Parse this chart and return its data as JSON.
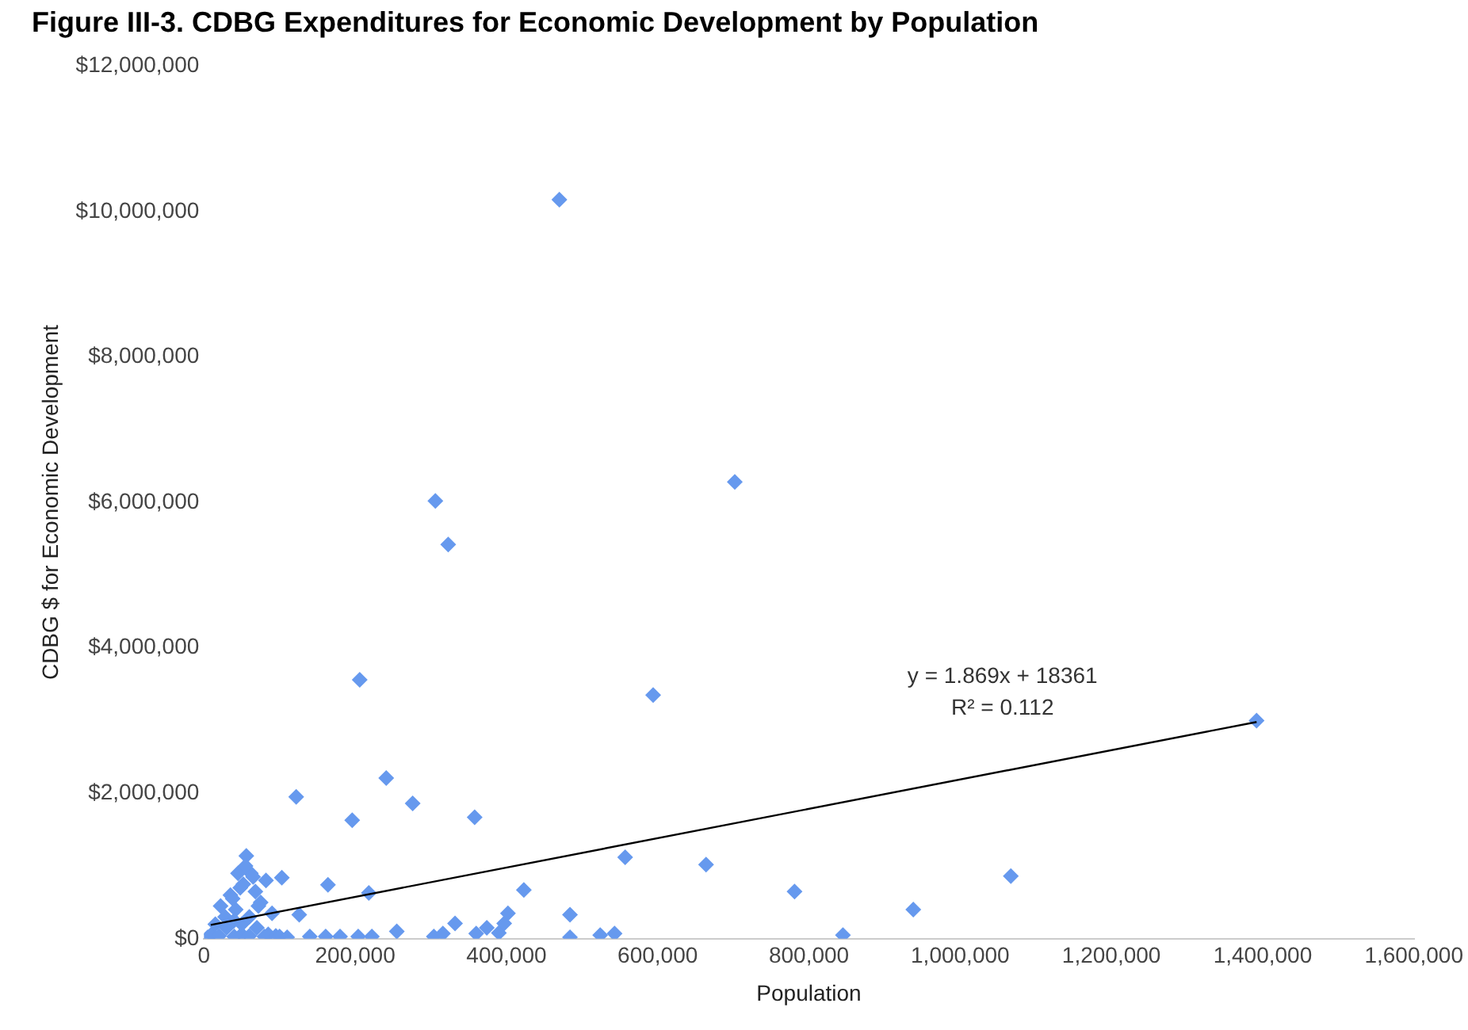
{
  "chart_data": {
    "type": "scatter",
    "title": "Figure III-3. CDBG Expenditures for Economic Development by Population",
    "xlabel": "Population",
    "ylabel": "CDBG $ for Economic Development",
    "xlim": [
      0,
      1600000
    ],
    "xticks": [
      0,
      {
        "value": 200000,
        "label": "200,000"
      },
      {
        "value": 400000,
        "label": "400,000"
      },
      {
        "value": 600000,
        "label": "600,000"
      },
      {
        "value": 800000,
        "label": "800,000"
      },
      {
        "value": 1000000,
        "label": "1,000,000"
      },
      {
        "value": 1200000,
        "label": "1,200,000"
      },
      {
        "value": 1400000,
        "label": "1,400,000"
      },
      {
        "value": 1600000,
        "label": "1,600,000"
      }
    ],
    "ylim": [
      0,
      12000000
    ],
    "yticks": [
      {
        "value": 0,
        "label": "$0"
      },
      {
        "value": 2000000,
        "label": "$2,000,000"
      },
      {
        "value": 4000000,
        "label": "$4,000,000"
      },
      {
        "value": 6000000,
        "label": "$6,000,000"
      },
      {
        "value": 8000000,
        "label": "$8,000,000"
      },
      {
        "value": 10000000,
        "label": "$10,000,000"
      },
      {
        "value": 12000000,
        "label": "$12,000,000"
      }
    ],
    "grid": false,
    "legend": false,
    "marker": "diamond",
    "series": [
      {
        "color": "#6699ee",
        "x": [
          470000,
          306000,
          323000,
          702000,
          206000,
          594000,
          122000,
          241000,
          276000,
          196000,
          358000,
          164000,
          218000,
          423000,
          557000,
          664000,
          484000,
          484000,
          524000,
          543000,
          781000,
          845000,
          938000,
          1067000,
          1392000,
          255000,
          140000,
          161000,
          180000,
          204000,
          222000,
          304000,
          316000,
          332000,
          360000,
          374000,
          390000,
          397000,
          402000,
          126000,
          103000,
          5000,
          10000,
          20000,
          40000,
          50000,
          60000,
          80000,
          85000,
          95000,
          100000,
          110000,
          15000,
          22000,
          28000,
          35000,
          42000,
          48000,
          56000,
          62000,
          68000,
          75000,
          82000,
          90000,
          30000,
          40000,
          50000,
          60000,
          70000,
          45000,
          55000,
          65000,
          38000,
          52000,
          72000
        ],
        "values": [
          10160000,
          6020000,
          5420000,
          6280000,
          3560000,
          3350000,
          1950000,
          2210000,
          1860000,
          1630000,
          1670000,
          740000,
          630000,
          670000,
          1120000,
          1020000,
          330000,
          20000,
          50000,
          70000,
          650000,
          50000,
          400000,
          860000,
          3000000,
          100000,
          30000,
          30000,
          30000,
          30000,
          30000,
          30000,
          70000,
          210000,
          70000,
          150000,
          80000,
          210000,
          350000,
          330000,
          840000,
          20000,
          60000,
          40000,
          30000,
          60000,
          40000,
          30000,
          60000,
          40000,
          30000,
          20000,
          200000,
          450000,
          300000,
          600000,
          400000,
          700000,
          1140000,
          900000,
          650000,
          500000,
          800000,
          350000,
          150000,
          250000,
          200000,
          300000,
          150000,
          900000,
          1000000,
          850000,
          550000,
          750000,
          450000
        ]
      },
      {
        "type": "line",
        "color": "#000000",
        "marker": "none",
        "x": [
          9000,
          1392000
        ],
        "values": [
          190000,
          2980000
        ]
      }
    ],
    "annotations": [
      "y = 1.869x + 18361",
      "R² = 0.112"
    ]
  }
}
